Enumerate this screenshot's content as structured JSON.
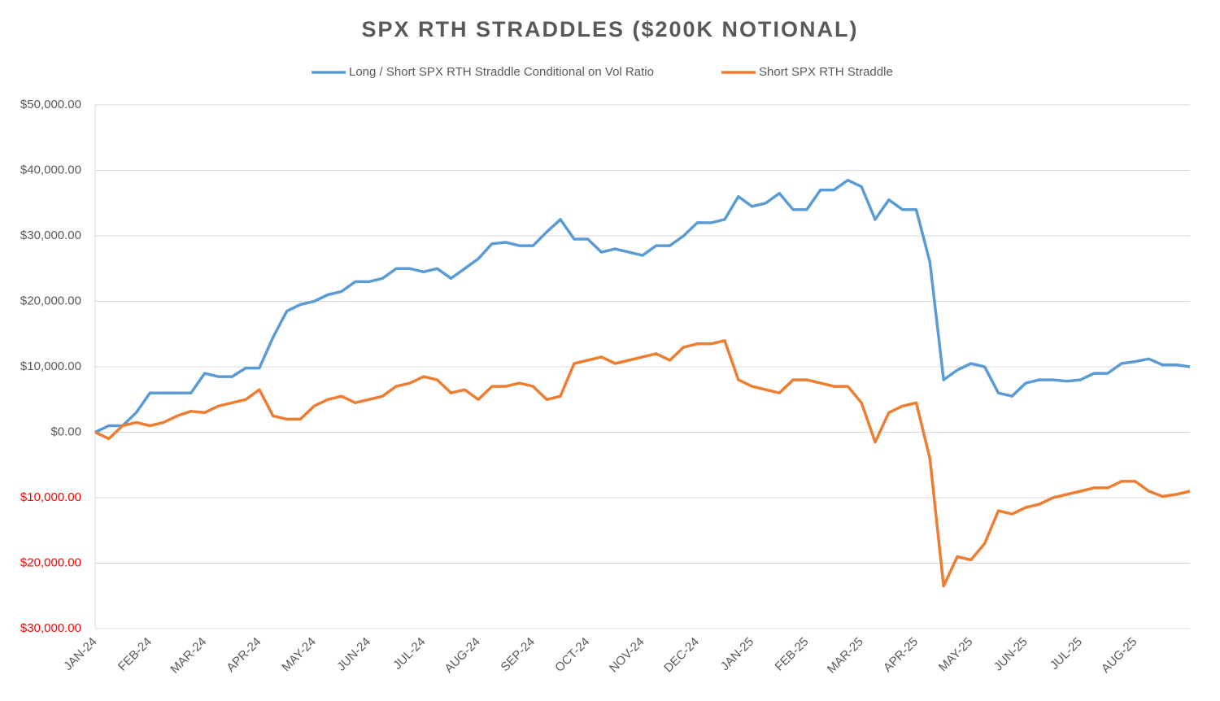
{
  "chart_data": {
    "type": "line",
    "title": "SPX RTH STRADDLES ($200K NOTIONAL)",
    "categories": [
      "JAN-24",
      null,
      null,
      null,
      "FEB-24",
      null,
      null,
      null,
      "MAR-24",
      null,
      null,
      null,
      "APR-24",
      null,
      null,
      null,
      "MAY-24",
      null,
      null,
      null,
      "JUN-24",
      null,
      null,
      null,
      "JUL-24",
      null,
      null,
      null,
      "AUG-24",
      null,
      null,
      null,
      "SEP-24",
      null,
      null,
      null,
      "OCT-24",
      null,
      null,
      null,
      "NOV-24",
      null,
      null,
      null,
      "DEC-24",
      null,
      null,
      null,
      "JAN-25",
      null,
      null,
      null,
      "FEB-25",
      null,
      null,
      null,
      "MAR-25",
      null,
      null,
      null,
      "APR-25",
      null,
      null,
      null,
      "MAY-25",
      null,
      null,
      null,
      "JUN-25",
      null,
      null,
      null,
      "JUL-25",
      null,
      null,
      null,
      "AUG-25",
      null,
      null,
      null,
      null
    ],
    "series": [
      {
        "name": "Long / Short SPX RTH Straddle Conditional on Vol Ratio",
        "color": "#5b9bd5",
        "values": [
          0,
          1000,
          1000,
          3000,
          6000,
          6000,
          6000,
          6000,
          9000,
          8500,
          8500,
          9800,
          9800,
          14500,
          18500,
          19500,
          20000,
          21000,
          21500,
          23000,
          23000,
          23500,
          25000,
          25000,
          24500,
          25000,
          23500,
          25000,
          26500,
          28800,
          29000,
          28500,
          28500,
          30600,
          32500,
          29500,
          29500,
          27500,
          28000,
          27500,
          27000,
          28500,
          28500,
          30000,
          32000,
          32000,
          32500,
          36000,
          34500,
          35000,
          36500,
          34000,
          34000,
          37000,
          37000,
          38500,
          37500,
          32500,
          35500,
          34000,
          34000,
          26000,
          8000,
          9500,
          10500,
          10000,
          6000,
          5500,
          7500,
          8000,
          8000,
          7800,
          8000,
          9000,
          9000,
          10500,
          10800,
          11200,
          10300,
          10300,
          10000
        ]
      },
      {
        "name": "Short SPX RTH Straddle",
        "color": "#ed7d31",
        "values": [
          0,
          -1000,
          1000,
          1500,
          1000,
          1500,
          2500,
          3200,
          3000,
          4000,
          4500,
          5000,
          6500,
          2500,
          2000,
          2000,
          4000,
          5000,
          5500,
          4500,
          5000,
          5500,
          7000,
          7500,
          8500,
          8000,
          6000,
          6500,
          5000,
          7000,
          7000,
          7500,
          7000,
          5000,
          5500,
          10500,
          11000,
          11500,
          10500,
          11000,
          11500,
          12000,
          11000,
          13000,
          13500,
          13500,
          14000,
          8000,
          7000,
          6500,
          6000,
          8000,
          8000,
          7500,
          7000,
          7000,
          4500,
          -1500,
          3000,
          4000,
          4500,
          -4000,
          -23500,
          -19000,
          -19500,
          -17000,
          -12000,
          -12500,
          -11500,
          -11000,
          -10000,
          -9500,
          -9000,
          -8500,
          -8500,
          -7500,
          -7500,
          -9000,
          -9800,
          -9500,
          -9000
        ]
      }
    ],
    "ylim": [
      -30000,
      50000
    ],
    "yticks": [
      {
        "value": -30000,
        "label": "$30,000.00"
      },
      {
        "value": -20000,
        "label": "$20,000.00"
      },
      {
        "value": -10000,
        "label": "$10,000.00"
      },
      {
        "value": 0,
        "label": "$0.00"
      },
      {
        "value": 10000,
        "label": "$10,000.00"
      },
      {
        "value": 20000,
        "label": "$20,000.00"
      },
      {
        "value": 30000,
        "label": "$30,000.00"
      },
      {
        "value": 40000,
        "label": "$40,000.00"
      },
      {
        "value": 50000,
        "label": "$50,000.00"
      }
    ],
    "negative_tick_color": "#ff0000",
    "grid": true,
    "legend": "top"
  }
}
